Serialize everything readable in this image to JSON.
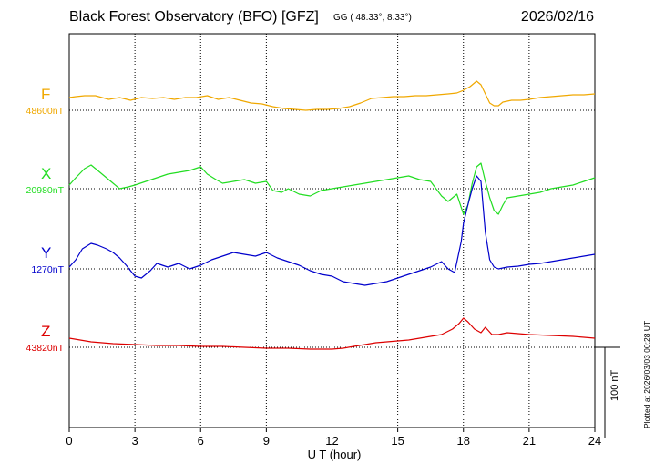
{
  "header": {
    "title": "Black Forest Observatory (BFO)  [GFZ]",
    "coords": "GG ( 48.33°,   8.33°)",
    "date": "2026/02/16"
  },
  "footer": {
    "xlabel": "U T (hour)",
    "scale_label": "100 nT",
    "plotted_note": "Plotted at 2026/03/03 00:28 UT"
  },
  "chart_data": {
    "type": "line",
    "x_unit": "hour (UT)",
    "xlim": [
      0,
      24
    ],
    "x_ticks": [
      "0",
      "3",
      "6",
      "9",
      "12",
      "15",
      "18",
      "21",
      "24"
    ],
    "grid": true,
    "scale_bar_nT": 100,
    "series": [
      {
        "name": "F",
        "baseline_label": "48600nT",
        "baseline_nT": 48600,
        "color": "#f0a800",
        "x": [
          0,
          0.3,
          0.7,
          1.2,
          1.8,
          2.3,
          2.8,
          3.3,
          3.8,
          4.3,
          4.8,
          5.3,
          5.8,
          6.3,
          6.8,
          7.3,
          7.8,
          8.3,
          8.8,
          9.3,
          9.8,
          10.3,
          10.8,
          11.3,
          11.8,
          12.3,
          12.8,
          13.3,
          13.8,
          14.3,
          14.8,
          15.3,
          15.8,
          16.3,
          16.8,
          17.3,
          17.7,
          18.0,
          18.3,
          18.6,
          18.8,
          19.0,
          19.2,
          19.4,
          19.6,
          19.8,
          20.2,
          20.6,
          21.0,
          21.5,
          22.0,
          22.5,
          23.0,
          23.5,
          24.0
        ],
        "y": [
          14,
          15,
          16,
          16,
          12,
          14,
          11,
          14,
          13,
          14,
          12,
          14,
          14,
          16,
          12,
          14,
          11,
          8,
          7,
          4,
          2,
          1,
          0,
          1,
          1,
          2,
          4,
          8,
          13,
          14,
          15,
          15,
          16,
          16,
          17,
          18,
          19,
          22,
          26,
          32,
          28,
          18,
          8,
          5,
          5,
          9,
          11,
          11,
          12,
          14,
          15,
          16,
          17,
          17,
          18
        ]
      },
      {
        "name": "X",
        "baseline_label": "20980nT",
        "baseline_nT": 20980,
        "color": "#22dd22",
        "x": [
          0,
          0.3,
          0.7,
          1.0,
          1.3,
          1.7,
          2.0,
          2.3,
          2.7,
          3.0,
          3.5,
          4.0,
          4.5,
          5.0,
          5.5,
          6.0,
          6.3,
          6.7,
          7.0,
          7.5,
          8.0,
          8.5,
          9.0,
          9.3,
          9.7,
          10.0,
          10.5,
          11.0,
          11.5,
          12.0,
          12.5,
          13.0,
          13.5,
          14.0,
          14.5,
          15.0,
          15.5,
          16.0,
          16.5,
          17.0,
          17.3,
          17.7,
          18.0,
          18.2,
          18.4,
          18.6,
          18.8,
          19.0,
          19.2,
          19.4,
          19.6,
          19.8,
          20.0,
          20.5,
          21.0,
          21.5,
          22.0,
          22.5,
          23.0,
          23.5,
          24.0
        ],
        "y": [
          4,
          12,
          22,
          26,
          20,
          12,
          6,
          0,
          2,
          4,
          8,
          12,
          16,
          18,
          20,
          24,
          16,
          10,
          6,
          8,
          10,
          6,
          8,
          -2,
          -4,
          0,
          -6,
          -8,
          -2,
          0,
          2,
          4,
          6,
          8,
          10,
          12,
          14,
          10,
          8,
          -8,
          -14,
          -6,
          -28,
          -18,
          6,
          24,
          28,
          8,
          -10,
          -24,
          -28,
          -18,
          -10,
          -8,
          -6,
          -4,
          0,
          2,
          4,
          8,
          12
        ]
      },
      {
        "name": "Y",
        "baseline_label": "1270nT",
        "baseline_nT": 1270,
        "color": "#0000cc",
        "x": [
          0,
          0.3,
          0.6,
          1.0,
          1.3,
          1.7,
          2.0,
          2.3,
          2.6,
          3.0,
          3.3,
          3.7,
          4.0,
          4.5,
          5.0,
          5.5,
          6.0,
          6.5,
          7.0,
          7.5,
          8.0,
          8.5,
          9.0,
          9.5,
          10.0,
          10.5,
          11.0,
          11.5,
          12.0,
          12.5,
          13.0,
          13.5,
          14.0,
          14.5,
          15.0,
          15.5,
          16.0,
          16.5,
          17.0,
          17.3,
          17.6,
          17.9,
          18.0,
          18.2,
          18.4,
          18.6,
          18.8,
          19.0,
          19.2,
          19.4,
          19.6,
          20.0,
          20.5,
          21.0,
          21.5,
          22.0,
          22.5,
          23.0,
          23.5,
          24.0
        ],
        "y": [
          2,
          10,
          22,
          28,
          26,
          22,
          18,
          12,
          4,
          -8,
          -10,
          -2,
          6,
          2,
          6,
          0,
          4,
          10,
          14,
          18,
          16,
          14,
          18,
          12,
          8,
          4,
          -2,
          -6,
          -8,
          -14,
          -16,
          -18,
          -16,
          -14,
          -10,
          -6,
          -2,
          2,
          8,
          0,
          -4,
          30,
          50,
          70,
          88,
          102,
          96,
          40,
          10,
          2,
          0,
          2,
          3,
          5,
          6,
          8,
          10,
          12,
          14,
          16
        ]
      },
      {
        "name": "Z",
        "baseline_label": "43820nT",
        "baseline_nT": 43820,
        "color": "#dd0000",
        "x": [
          0,
          0.5,
          1.0,
          1.5,
          2.0,
          3.0,
          4.0,
          5.0,
          6.0,
          7.0,
          8.0,
          9.0,
          10.0,
          11.0,
          12.0,
          12.5,
          13.0,
          13.5,
          14.0,
          14.5,
          15.0,
          15.5,
          16.0,
          16.5,
          17.0,
          17.5,
          17.8,
          18.0,
          18.2,
          18.5,
          18.8,
          19.0,
          19.3,
          19.6,
          20.0,
          20.5,
          21.0,
          22.0,
          23.0,
          24.0
        ],
        "y": [
          10,
          8,
          6,
          5,
          4,
          3,
          2,
          2,
          1,
          1,
          0,
          -1,
          -1,
          -2,
          -2,
          -1,
          1,
          3,
          5,
          6,
          7,
          8,
          10,
          12,
          14,
          20,
          26,
          32,
          28,
          20,
          16,
          22,
          14,
          14,
          16,
          15,
          14,
          13,
          12,
          10
        ]
      }
    ]
  }
}
